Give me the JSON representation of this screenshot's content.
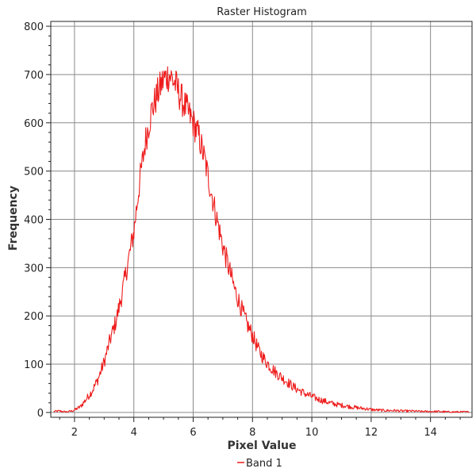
{
  "chart_data": {
    "type": "line",
    "title": "Raster Histogram",
    "xlabel": "Pixel Value",
    "ylabel": "Frequency",
    "xlim": [
      1.2,
      15.4
    ],
    "ylim": [
      -10,
      810
    ],
    "x_ticks": [
      2,
      4,
      6,
      8,
      10,
      12,
      14
    ],
    "y_ticks": [
      0,
      100,
      200,
      300,
      400,
      500,
      600,
      700,
      800
    ],
    "grid": true,
    "legend": "bottom-center",
    "series": [
      {
        "name": "Band 1",
        "color": "#ee1c1c",
        "x": [
          1.3,
          1.5,
          1.7,
          1.9,
          2.0,
          2.2,
          2.4,
          2.6,
          2.8,
          3.0,
          3.2,
          3.4,
          3.6,
          3.8,
          4.0,
          4.2,
          4.4,
          4.6,
          4.8,
          5.0,
          5.2,
          5.4,
          5.6,
          5.8,
          6.0,
          6.2,
          6.4,
          6.6,
          6.8,
          7.0,
          7.2,
          7.4,
          7.6,
          7.8,
          8.0,
          8.2,
          8.4,
          8.6,
          8.8,
          9.0,
          9.2,
          9.4,
          9.6,
          9.8,
          10.0,
          10.2,
          10.4,
          10.6,
          10.8,
          11.0,
          11.2,
          11.4,
          11.6,
          11.8,
          12.0,
          12.2,
          12.5,
          12.8,
          13.1,
          13.4,
          13.7,
          14.0,
          14.3,
          14.6,
          14.9,
          15.3
        ],
        "values": [
          2,
          3,
          1,
          3,
          5,
          12,
          28,
          45,
          70,
          105,
          150,
          190,
          245,
          310,
          375,
          480,
          565,
          625,
          660,
          690,
          700,
          680,
          650,
          625,
          600,
          570,
          520,
          460,
          400,
          345,
          300,
          255,
          220,
          185,
          160,
          130,
          110,
          95,
          82,
          72,
          62,
          52,
          45,
          38,
          33,
          28,
          24,
          20,
          17,
          15,
          13,
          11,
          9,
          8,
          6,
          5,
          4,
          4,
          3,
          3,
          2,
          2,
          2,
          1,
          1,
          1
        ]
      }
    ]
  }
}
